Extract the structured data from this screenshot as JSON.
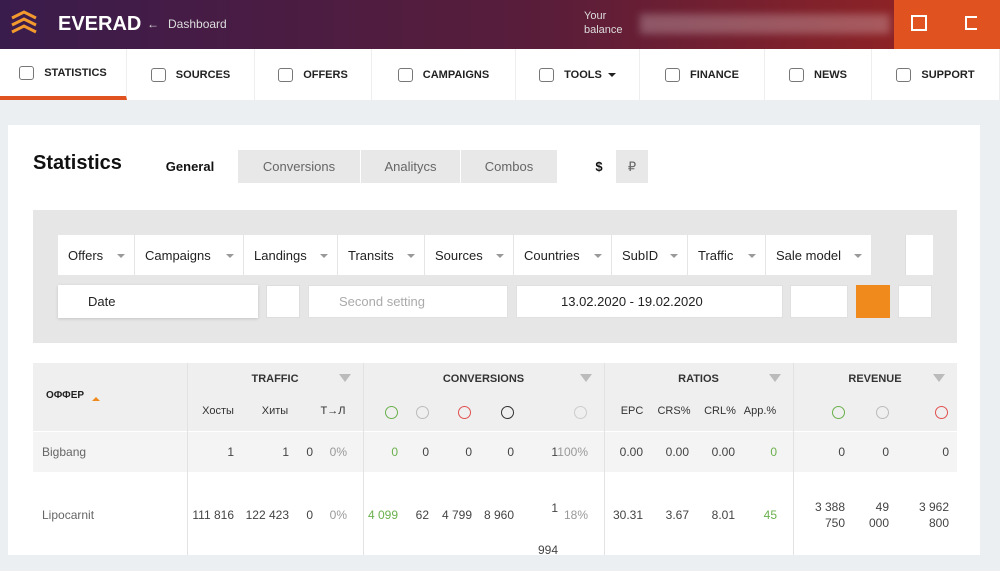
{
  "header": {
    "logo": "EVERAD",
    "back_link": "Dashboard",
    "balance_label": "Your balance"
  },
  "nav": [
    "STATISTICS",
    "SOURCES",
    "OFFERS",
    "CAMPAIGNS",
    "TOOLS",
    "FINANCE",
    "NEWS",
    "SUPPORT"
  ],
  "page": {
    "title": "Statistics",
    "tabs": [
      "General",
      "Conversions",
      "Analitycs",
      "Combos"
    ],
    "currencies": [
      "$",
      "₽"
    ]
  },
  "filters": {
    "groupings": [
      "Offers",
      "Campaigns",
      "Landings",
      "Transits",
      "Sources",
      "Countries",
      "SubID",
      "Traffic",
      "Sale model"
    ],
    "primary": "Date",
    "secondary": "Second setting",
    "date_range": "13.02.2020 - 19.02.2020"
  },
  "table": {
    "offer_header": "ОФФЕР",
    "groups": [
      "TRAFFIC",
      "CONVERSIONS",
      "RATIOS",
      "REVENUE"
    ],
    "subheaders": [
      "Хосты",
      "Хиты",
      "Т→Л",
      "EPC",
      "CRS%",
      "CRL%",
      "App.%"
    ],
    "rows": [
      [
        "Bigbang",
        "1",
        "1",
        "0",
        "0%",
        "0",
        "0",
        "0",
        "0",
        "1",
        "100%",
        "0.00",
        "0.00",
        "0.00",
        "0",
        "0",
        "0",
        "0"
      ],
      [
        "Lipocarnit",
        "111 816",
        "122 423",
        "0",
        "0%",
        "4 099",
        "62",
        "4 799",
        "8 960",
        "1 994",
        "18%",
        "30.31",
        "3.67",
        "8.01",
        "45",
        "3 388 750",
        "49 000",
        "3 962 800"
      ]
    ]
  }
}
